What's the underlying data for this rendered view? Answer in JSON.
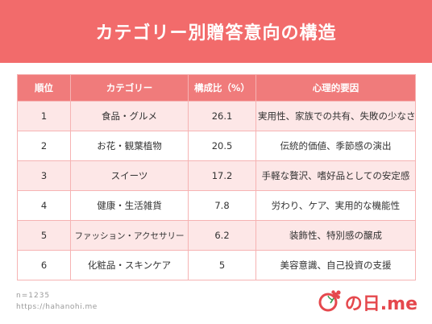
{
  "header": {
    "title": "カテゴリー別贈答意向の構造"
  },
  "chart_data": {
    "type": "table",
    "columns": [
      "順位",
      "カテゴリー",
      "構成比（%）",
      "心理的要因"
    ],
    "rows": [
      [
        "1",
        "食品・グルメ",
        "26.1",
        "実用性、家族での共有、失敗の少なさ"
      ],
      [
        "2",
        "お花・観葉植物",
        "20.5",
        "伝統的価値、季節感の演出"
      ],
      [
        "3",
        "スイーツ",
        "17.2",
        "手軽な贅沢、嗜好品としての安定感"
      ],
      [
        "4",
        "健康・生活雑貨",
        "7.8",
        "労わり、ケア、実用的な機能性"
      ],
      [
        "5",
        "ファッション・アクセサリー",
        "6.2",
        "装飾性、特別感の醸成"
      ],
      [
        "6",
        "化粧品・スキンケア",
        "5",
        "美容意識、自己投資の支援"
      ]
    ]
  },
  "footer": {
    "n": "n=1235",
    "url": "https://hahanohi.me"
  },
  "logo": {
    "text": "の日.me",
    "icon": "carnation-icon",
    "color": "#e5484d"
  },
  "colors": {
    "header_bg": "#f26b6b",
    "table_header_bg": "#f07b7b",
    "row_stripe": "#fde7e7",
    "border": "#f6b3b3"
  }
}
